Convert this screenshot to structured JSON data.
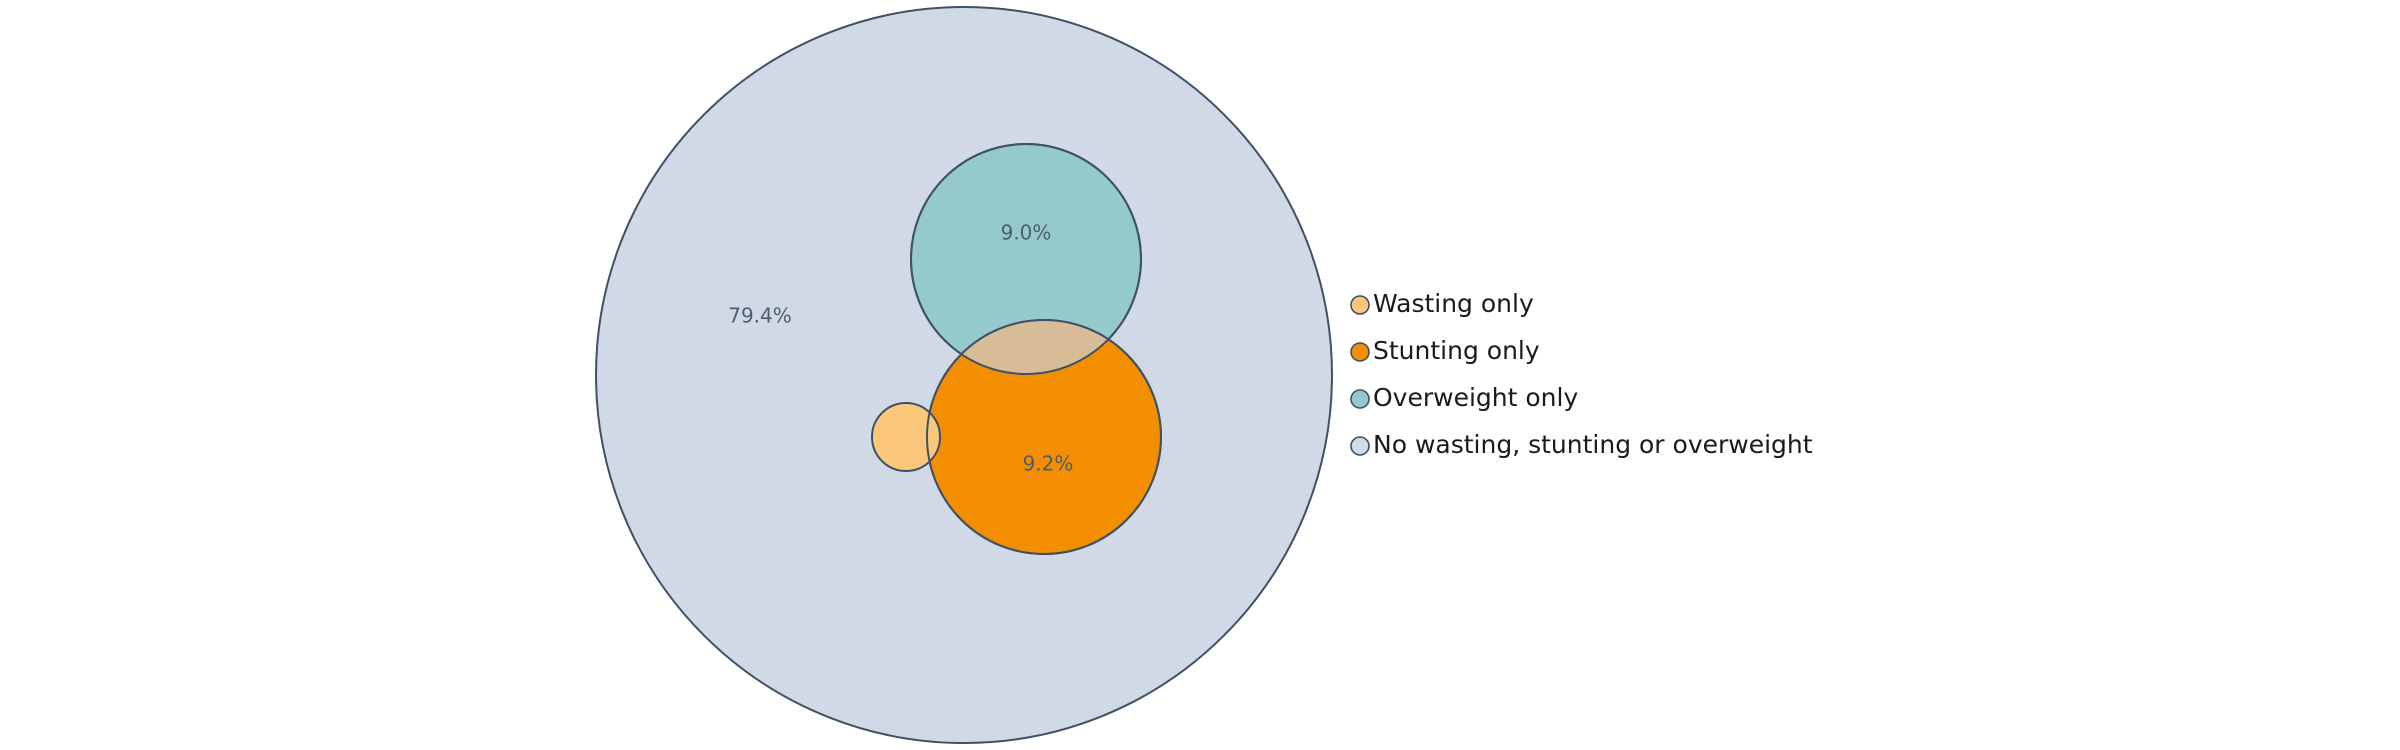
{
  "chart_data": {
    "type": "venn",
    "sets": [
      {
        "name": "Wasting only",
        "color": "#fbc77b",
        "label": ""
      },
      {
        "name": "Stunting only",
        "color": "#f28e00",
        "label": "9.2%"
      },
      {
        "name": "Overweight only",
        "color": "#94cacb",
        "label": "9.0%"
      },
      {
        "name": "No wasting, stunting or overweight",
        "color": "#d0d9e5",
        "label": "79.4%"
      }
    ],
    "overlap": {
      "sets": [
        "Stunting only",
        "Overweight only"
      ],
      "color": "#d8bc97"
    },
    "stroke_color": "#3e5166",
    "legend": {
      "position": "right"
    }
  }
}
